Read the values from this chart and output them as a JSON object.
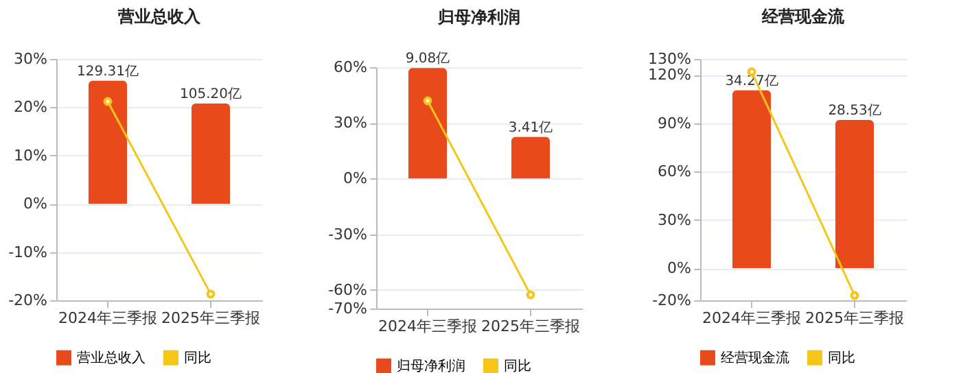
{
  "chart_data": [
    {
      "type": "bar",
      "title": "营业总收入",
      "categories": [
        "2024年三季报",
        "2025年三季报"
      ],
      "series": [
        {
          "name": "营业总收入",
          "type": "bar",
          "axis": "y2",
          "color": "#e84a1b",
          "values": [
            129.31,
            105.2
          ],
          "value_labels": [
            "129.31亿",
            "105.20亿"
          ]
        },
        {
          "name": "同比",
          "type": "line",
          "color": "#f5c518",
          "values": [
            21.2,
            -18.7
          ]
        }
      ],
      "ylim": [
        -20,
        30
      ],
      "yticks": [
        {
          "value": -20,
          "label": "-20%"
        },
        {
          "value": -10,
          "label": "-10%"
        },
        {
          "value": 0,
          "label": "0%"
        },
        {
          "value": 10,
          "label": "10%"
        },
        {
          "value": 20,
          "label": "20%"
        },
        {
          "value": 30,
          "label": "30%"
        }
      ],
      "y2lim": [
        -101.4,
        152.1
      ],
      "grid": "y",
      "legend": "bottom",
      "marker": "circle"
    },
    {
      "type": "bar",
      "title": "归母净利润",
      "categories": [
        "2024年三季报",
        "2025年三季报"
      ],
      "series": [
        {
          "name": "归母净利润",
          "type": "bar",
          "axis": "y2",
          "color": "#e84a1b",
          "values": [
            9.08,
            3.41
          ],
          "value_labels": [
            "9.08亿",
            "3.41亿"
          ]
        },
        {
          "name": "同比",
          "type": "line",
          "color": "#f5c518",
          "values": [
            41.9,
            -62.6
          ]
        }
      ],
      "ylim": [
        -70,
        60
      ],
      "yticks": [
        {
          "value": -70,
          "label": "-70%"
        },
        {
          "value": -60,
          "label": "-60%"
        },
        {
          "value": -30,
          "label": "-30%"
        },
        {
          "value": 0,
          "label": "0%"
        },
        {
          "value": 30,
          "label": "30%"
        },
        {
          "value": 60,
          "label": "60%"
        }
      ],
      "y2lim": [
        -10.7,
        9.15
      ],
      "grid": "y",
      "legend": "bottom",
      "marker": "circle"
    },
    {
      "type": "bar",
      "title": "经营现金流",
      "categories": [
        "2024年三季报",
        "2025年三季报"
      ],
      "series": [
        {
          "name": "经营现金流",
          "type": "bar",
          "axis": "y2",
          "color": "#e84a1b",
          "values": [
            34.27,
            28.53
          ],
          "value_labels": [
            "34.27亿",
            "28.53亿"
          ]
        },
        {
          "name": "同比",
          "type": "line",
          "color": "#f5c518",
          "values": [
            122,
            -17
          ]
        }
      ],
      "ylim": [
        -20,
        130
      ],
      "yticks": [
        {
          "value": -20,
          "label": "-20%"
        },
        {
          "value": 0,
          "label": "0%"
        },
        {
          "value": 30,
          "label": "30%"
        },
        {
          "value": 60,
          "label": "60%"
        },
        {
          "value": 90,
          "label": "90%"
        },
        {
          "value": 120,
          "label": "120%"
        },
        {
          "value": 130,
          "label": "130%"
        }
      ],
      "y2lim": [
        -6.2,
        40.3
      ],
      "grid": "y",
      "legend": "bottom",
      "marker": "circle"
    }
  ]
}
